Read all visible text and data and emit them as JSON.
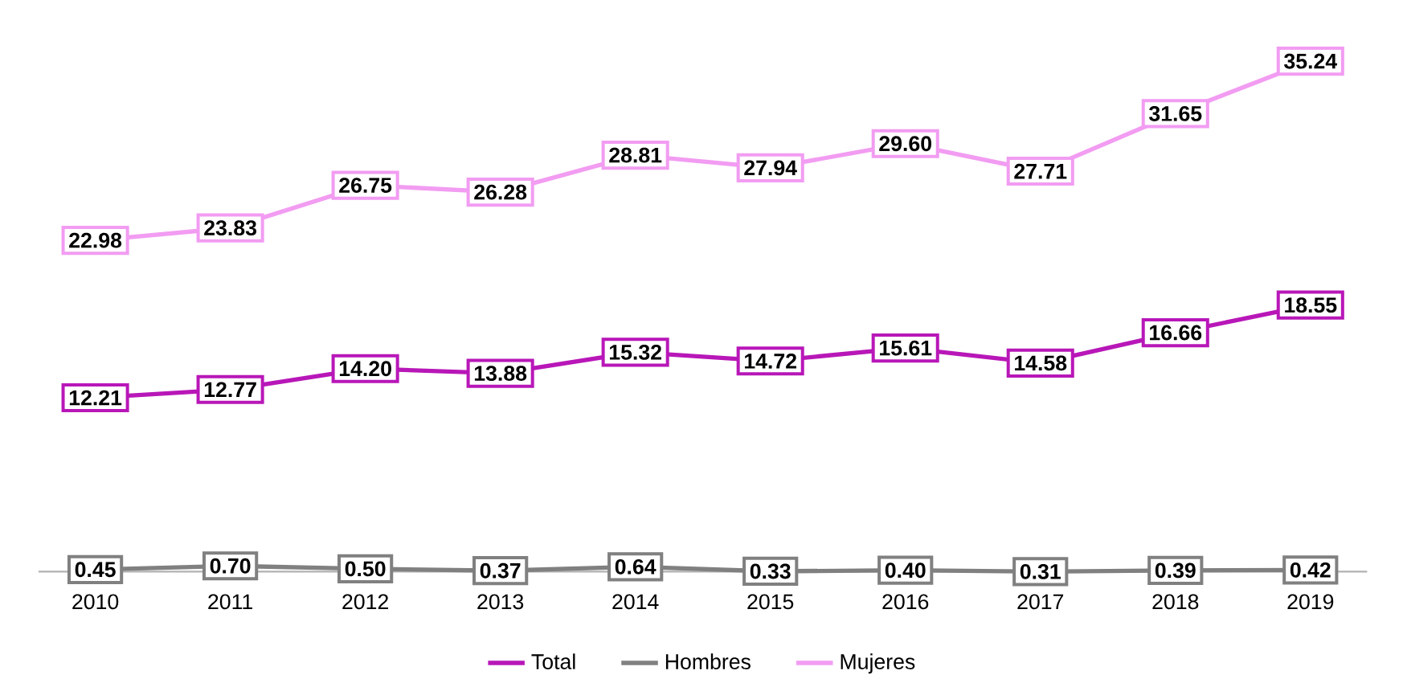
{
  "chart_data": {
    "type": "line",
    "categories": [
      "2010",
      "2011",
      "2012",
      "2013",
      "2014",
      "2015",
      "2016",
      "2017",
      "2018",
      "2019"
    ],
    "series": [
      {
        "name": "Total",
        "color": "#b817b8",
        "values": [
          12.21,
          12.77,
          14.2,
          13.88,
          15.32,
          14.72,
          15.61,
          14.58,
          16.66,
          18.55
        ],
        "value_labels": [
          "12.21",
          "12.77",
          "14.20",
          "13.88",
          "15.32",
          "14.72",
          "15.61",
          "14.58",
          "16.66",
          "18.55"
        ]
      },
      {
        "name": "Hombres",
        "color": "#808080",
        "values": [
          0.45,
          0.7,
          0.5,
          0.37,
          0.64,
          0.33,
          0.4,
          0.31,
          0.39,
          0.42
        ],
        "value_labels": [
          "0.45",
          "0.70",
          "0.50",
          "0.37",
          "0.64",
          "0.33",
          "0.40",
          "0.31",
          "0.39",
          "0.42"
        ]
      },
      {
        "name": "Mujeres",
        "color": "#f29cf2",
        "values": [
          22.98,
          23.83,
          26.75,
          26.28,
          28.81,
          27.94,
          29.6,
          27.71,
          31.65,
          35.24
        ],
        "value_labels": [
          "22.98",
          "23.83",
          "26.75",
          "26.28",
          "28.81",
          "27.94",
          "29.60",
          "27.71",
          "31.65",
          "35.24"
        ]
      }
    ],
    "tick_labels": "x",
    "legend": "bottom",
    "marker": "square",
    "line_style": "solid",
    "grid": false
  }
}
